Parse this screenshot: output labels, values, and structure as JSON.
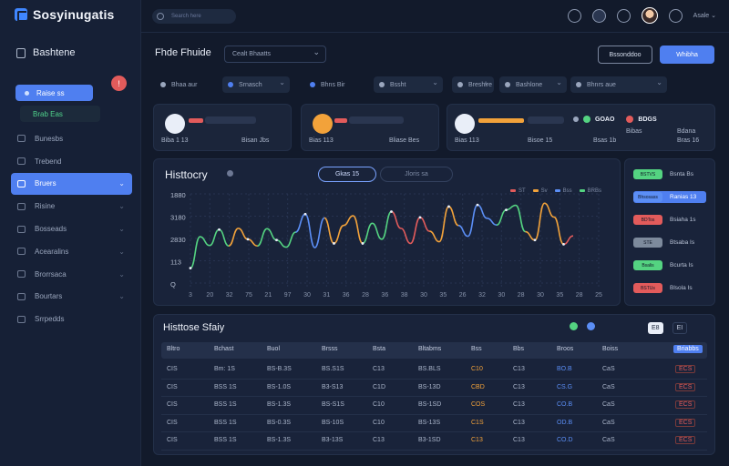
{
  "app": {
    "name": "Sosyinugatis"
  },
  "topbar": {
    "search_placeholder": "Search here",
    "user_label": "Asale ⌄"
  },
  "sidebar": {
    "title": "Bashtene",
    "badge": "!",
    "chip_label": "Raise ss",
    "green_label": "Brab Eas",
    "items": [
      {
        "label": "Bunesbs"
      },
      {
        "label": "Trebend"
      },
      {
        "label": "Bruers",
        "active": true
      },
      {
        "label": "Risine"
      },
      {
        "label": "Bosseads"
      },
      {
        "label": "Acearalins"
      },
      {
        "label": "Brorrsaca"
      },
      {
        "label": "Bourtars"
      },
      {
        "label": "Srrpedds"
      }
    ]
  },
  "page": {
    "title": "Fhde Fhuide",
    "select_value": "Cealt Bhaatts",
    "btn_secondary": "Bssonddoo",
    "btn_primary": "Whibha"
  },
  "filters": [
    {
      "label": "Bhaa aur",
      "color": "#9aa6bd",
      "kind": "plain"
    },
    {
      "label": "Srnasch",
      "color": "#4f7ff0",
      "kind": "box"
    },
    {
      "label": "Bhns  Bir",
      "color": "#4f7ff0",
      "kind": "plain"
    },
    {
      "label": "Bssht",
      "color": "#9aa6bd",
      "kind": "box"
    },
    {
      "label": "Breshlre",
      "color": "#9aa6bd",
      "kind": "box"
    },
    {
      "label": "Bashlone",
      "color": "#9aa6bd",
      "kind": "box"
    },
    {
      "label": "Bhnrs aue",
      "color": "#9aa6bd",
      "kind": "box"
    }
  ],
  "cards": [
    {
      "icon_color": "#e9eef8",
      "bar_color": "#e25b5b",
      "left_text": "Biba 1 13",
      "right_text": "Bisan Jbs"
    },
    {
      "icon_color": "#f2a23a",
      "bar_color": "#e25b5b",
      "left_text": "Bias 113",
      "right_text": "Bliase Bes"
    },
    {
      "icon_color": "#e9eef8",
      "bar_color": "#f2a23a",
      "left_text": "Bias 113",
      "right_text": "Bisoe 15",
      "tags": [
        "GOAO",
        "BDGS"
      ],
      "sub_tags": [
        "Bibas",
        "Bdana"
      ],
      "sub_right": [
        "Bsas 1b",
        "Bras 16"
      ]
    }
  ],
  "chart": {
    "title": "Histtocry",
    "seg_active": "Gkas 15",
    "seg_idle": "Jloris sa",
    "legend": [
      "ST",
      "Sv",
      "Bss",
      "BRBs"
    ],
    "y_ticks": [
      "1880",
      "3180",
      "2830",
      "113",
      "Q"
    ],
    "x_ticks": [
      "3",
      "20",
      "32",
      "75",
      "21",
      "97",
      "30",
      "31",
      "36",
      "28",
      "36",
      "38",
      "30",
      "35",
      "26",
      "32",
      "30",
      "28",
      "30",
      "35",
      "28",
      "25"
    ],
    "colors": {
      "green": "#54d381",
      "orange": "#f2a23a",
      "blue": "#5b8ef5",
      "red": "#e25b5b",
      "grid": "#273350"
    }
  },
  "chart_data": {
    "type": "line",
    "title": "Histtocry",
    "series": [
      {
        "values": [
          2.7,
          10.2,
          8.1,
          11.9,
          8.0,
          12.2,
          9.6,
          8.0,
          12.1,
          9.4,
          7.7,
          11.3,
          15.6,
          7.6,
          14.7,
          8.6,
          12.9,
          15.2,
          8.6,
          13.4,
          9.6,
          16.2,
          12.2,
          8.6,
          14.8,
          11.5,
          9.0,
          17.4,
          12.9,
          10.3,
          17.8,
          14.6,
          13.0,
          16.6,
          17.7,
          11.4,
          9.4,
          18.2,
          14.9,
          8.4,
          10.4
        ]
      }
    ]
  },
  "right_panel": [
    {
      "pill": "BSTVS",
      "text": "Bsnta Bs",
      "color": "#54d381"
    },
    {
      "pill": "Bhsosass",
      "text": "Ranias 13",
      "color": "#5b8ef5",
      "active": true
    },
    {
      "pill": "BDTos",
      "text": "Bsiaha 1s",
      "color": "#e25b5b"
    },
    {
      "pill": "STE",
      "text": "Btsaba Is",
      "color": "#7d8a9c"
    },
    {
      "pill": "Bsalis",
      "text": "Bcurta Is",
      "color": "#54d381"
    },
    {
      "pill": "BSTUs",
      "text": "Blsola Is",
      "color": "#e25b5b"
    }
  ],
  "table": {
    "title": "Histtose Sfaiy",
    "ctrl_a": "E8",
    "ctrl_b": "EI",
    "headers": [
      "Bltro",
      "Bchast",
      "Buol",
      "Brsss",
      "Bsta",
      "Bltabms",
      "Bss",
      "Bbs",
      "Broos",
      "Boiss",
      "Briabbs"
    ],
    "rows": [
      [
        "CIS",
        "Bm: 1S",
        "BS-B.3S",
        "BS.S1S",
        "C13",
        "BS.BLS",
        "C10",
        "C13",
        "BO.B",
        "CaS",
        "ECS"
      ],
      [
        "CIS",
        "BSS 1S",
        "BS-1.0S",
        "B3-S13",
        "C1D",
        "BS-13D",
        "CBD",
        "C13",
        "CS.G",
        "CaS",
        "ECS"
      ],
      [
        "CIS",
        "BSS 1S",
        "BS-1.3S",
        "BS-S1S",
        "C10",
        "BS-1SD",
        "COS",
        "C13",
        "CO.B",
        "CaS",
        "ECS"
      ],
      [
        "CIS",
        "BSS 1S",
        "BS-0.3S",
        "BS-10S",
        "C10",
        "BS-13S",
        "C1S",
        "C13",
        "OD.B",
        "CaS",
        "ECS"
      ],
      [
        "CIS",
        "BSS 1S",
        "BS-1.3S",
        "B3-13S",
        "C13",
        "B3-1SD",
        "C13",
        "C13",
        "CO.D",
        "CaS",
        "ECS"
      ]
    ]
  }
}
